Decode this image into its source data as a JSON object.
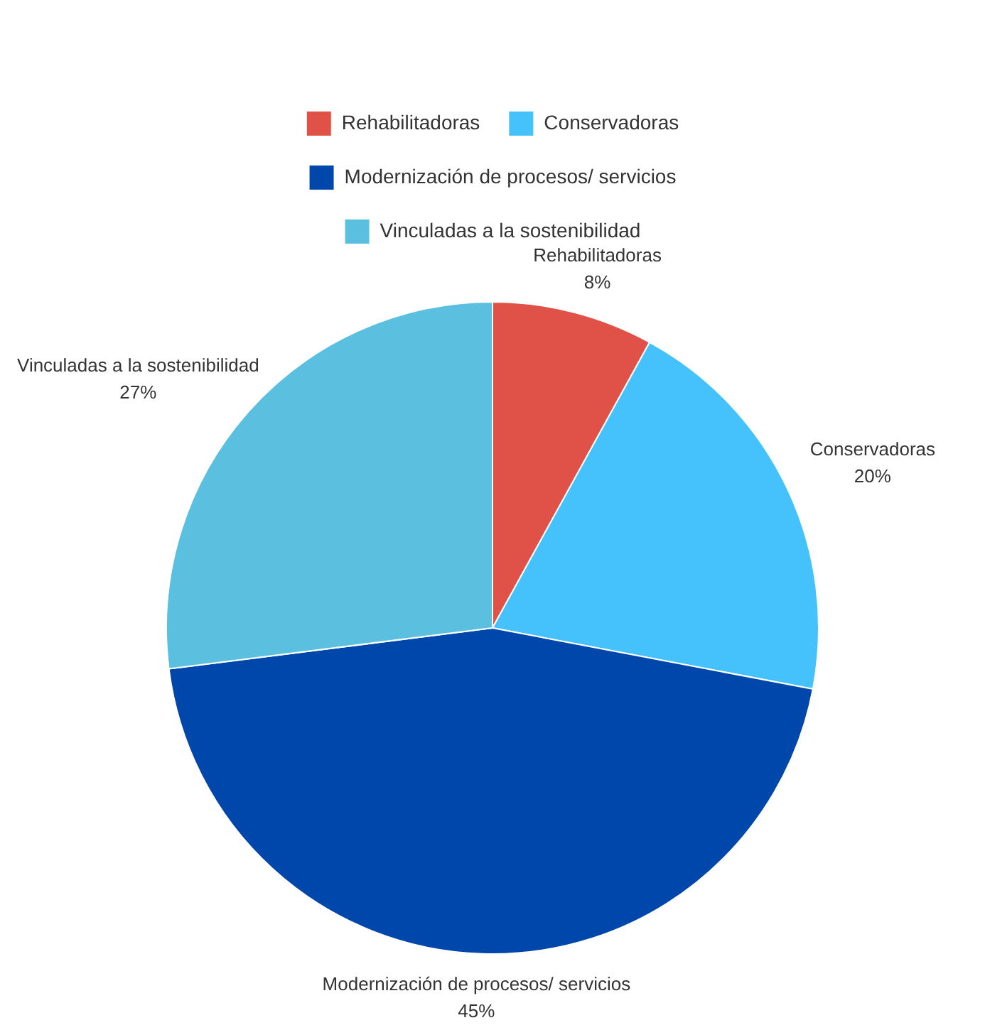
{
  "chart_data": {
    "type": "pie",
    "categories": [
      "Rehabilitadoras",
      "Conservadoras",
      "Modernización de procesos/ servicios",
      "Vinculadas a la sostenibilidad"
    ],
    "values": [
      8,
      20,
      45,
      27
    ],
    "value_labels": [
      "8%",
      "20%",
      "45%",
      "27%"
    ],
    "colors": [
      "#e05148",
      "#45c1fb",
      "#0047ab",
      "#5bbfe0"
    ],
    "legend": "top"
  }
}
